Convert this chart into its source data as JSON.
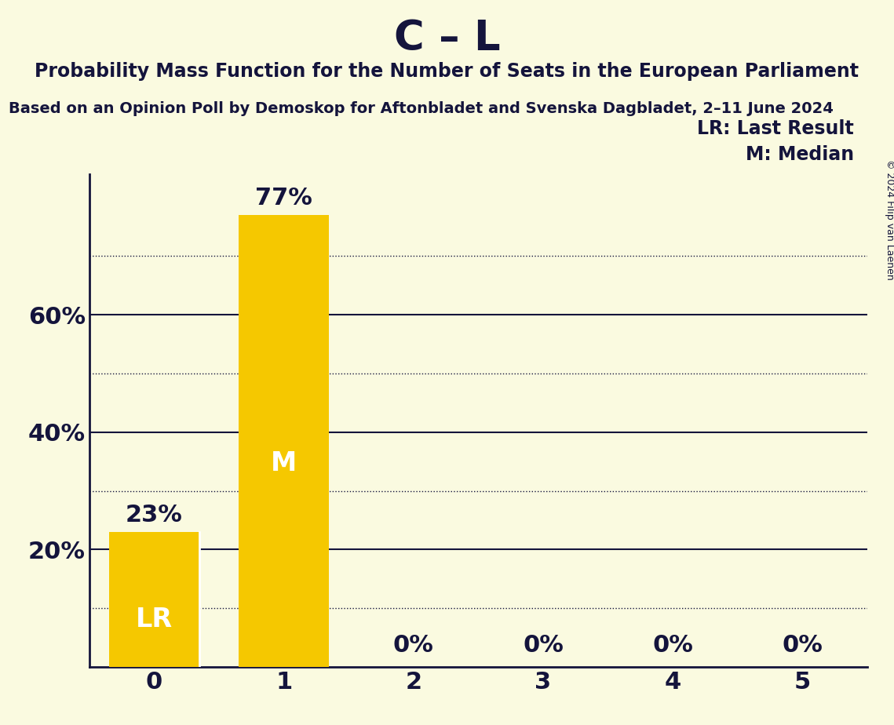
{
  "title": "C – L",
  "subtitle": "Probability Mass Function for the Number of Seats in the European Parliament",
  "source_line": "Based on an Opinion Poll by Demoskop for Aftonbladet and Svenska Dagbladet, 2–11 June 2024",
  "copyright": "© 2024 Filip van Laenen",
  "categories": [
    0,
    1,
    2,
    3,
    4,
    5
  ],
  "values": [
    0.23,
    0.77,
    0.0,
    0.0,
    0.0,
    0.0
  ],
  "bar_color": "#F5C800",
  "background_color": "#FAFAE0",
  "text_color": "#14143c",
  "label_color_inside": "#FFFFFF",
  "lr_bar": 0,
  "median_bar": 1,
  "ylim": [
    0,
    0.84
  ],
  "yticks": [
    0.2,
    0.4,
    0.6
  ],
  "ytick_labels": [
    "20%",
    "40%",
    "60%"
  ],
  "dotted_grid_values": [
    0.1,
    0.3,
    0.5,
    0.7
  ],
  "solid_grid_values": [
    0.2,
    0.4,
    0.6
  ],
  "title_fontsize": 38,
  "subtitle_fontsize": 17,
  "source_fontsize": 14,
  "bar_label_fontsize": 22,
  "inside_label_fontsize": 24,
  "axis_tick_fontsize": 22,
  "legend_fontsize": 17
}
